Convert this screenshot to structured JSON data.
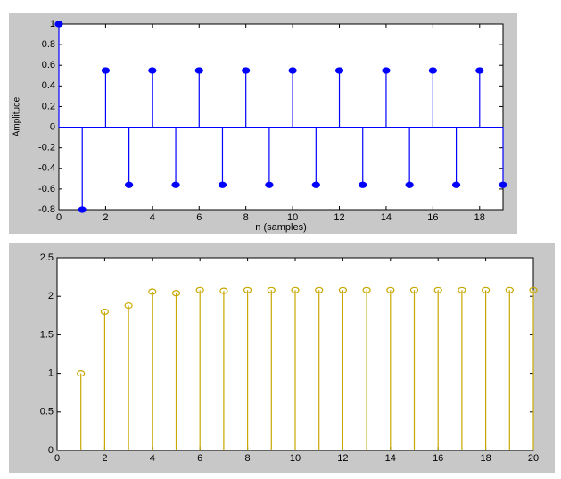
{
  "chart_data": [
    {
      "type": "stem",
      "xlabel": "n (samples)",
      "ylabel": "Amplitude",
      "x": [
        0,
        1,
        2,
        3,
        4,
        5,
        6,
        7,
        8,
        9,
        10,
        11,
        12,
        13,
        14,
        15,
        16,
        17,
        18,
        19
      ],
      "values": [
        1,
        -0.8,
        0.55,
        -0.56,
        0.55,
        -0.56,
        0.55,
        -0.56,
        0.55,
        -0.56,
        0.55,
        -0.56,
        0.55,
        -0.56,
        0.55,
        -0.56,
        0.55,
        -0.56,
        0.55,
        -0.56
      ],
      "color": "#0000ff",
      "filled": true,
      "xlim": [
        0,
        19
      ],
      "xticks": [
        0,
        2,
        4,
        6,
        8,
        10,
        12,
        14,
        16,
        18
      ],
      "ylim": [
        -0.8,
        1
      ],
      "yticks": [
        -0.8,
        -0.6,
        -0.4,
        -0.2,
        0,
        0.2,
        0.4,
        0.6,
        0.8,
        1
      ]
    },
    {
      "type": "stem",
      "x": [
        1,
        2,
        3,
        4,
        5,
        6,
        7,
        8,
        9,
        10,
        11,
        12,
        13,
        14,
        15,
        16,
        17,
        18,
        19,
        20
      ],
      "values": [
        1,
        1.8,
        1.88,
        2.06,
        2.04,
        2.08,
        2.07,
        2.08,
        2.08,
        2.08,
        2.08,
        2.08,
        2.08,
        2.08,
        2.08,
        2.08,
        2.08,
        2.08,
        2.08,
        2.08
      ],
      "color": "#c8a800",
      "filled": false,
      "xlim": [
        0,
        20
      ],
      "xticks": [
        0,
        2,
        4,
        6,
        8,
        10,
        12,
        14,
        16,
        18,
        20
      ],
      "ylim": [
        0,
        2.5
      ],
      "yticks": [
        0,
        0.5,
        1,
        1.5,
        2,
        2.5
      ]
    }
  ]
}
